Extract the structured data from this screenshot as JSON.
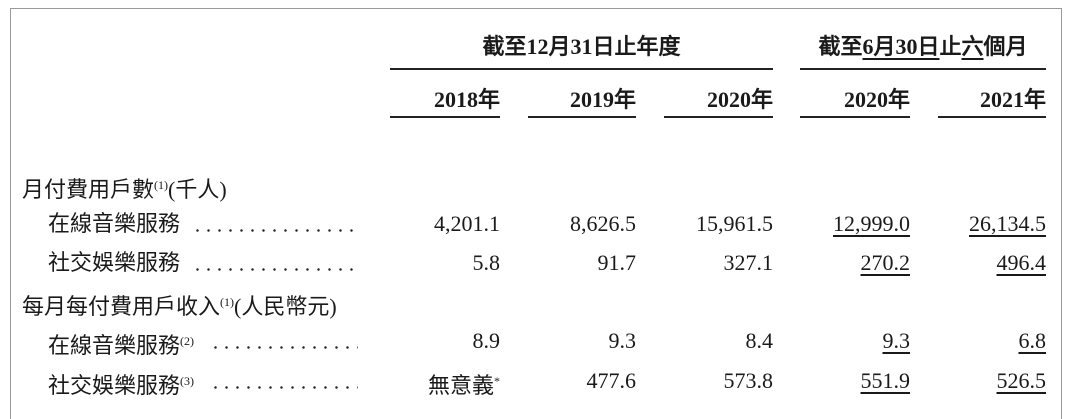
{
  "header": {
    "groups": [
      {
        "parts": [
          "截至12月31日止年度"
        ]
      },
      {
        "parts": [
          "截至",
          "6月30日",
          "止",
          "六",
          "個月"
        ]
      }
    ],
    "years": [
      "2018年",
      "2019年",
      "2020年",
      "2020年",
      "2021年"
    ]
  },
  "sections": [
    {
      "label": "月付費用戶數",
      "note": "(1)",
      "unit": "(千人)",
      "rows": [
        {
          "label": "在線音樂服務",
          "values": [
            "4,201.1",
            "8,626.5",
            "15,961.5",
            "12,999.0",
            "26,134.5"
          ]
        },
        {
          "label": "社交娛樂服務",
          "values": [
            "5.8",
            "91.7",
            "327.1",
            "270.2",
            "496.4"
          ]
        }
      ]
    },
    {
      "label": "每月每付費用戶收入",
      "note": "(1)",
      "unit": "(人民幣元)",
      "rows": [
        {
          "label": "在線音樂服務",
          "note": "(2)",
          "values": [
            "8.9",
            "9.3",
            "8.4",
            "9.3",
            "6.8"
          ]
        },
        {
          "label": "社交娛樂服務",
          "note": "(3)",
          "values": [
            {
              "text": "無意義",
              "note": "*"
            },
            "477.6",
            "573.8",
            "551.9",
            "526.5"
          ]
        }
      ]
    }
  ]
}
